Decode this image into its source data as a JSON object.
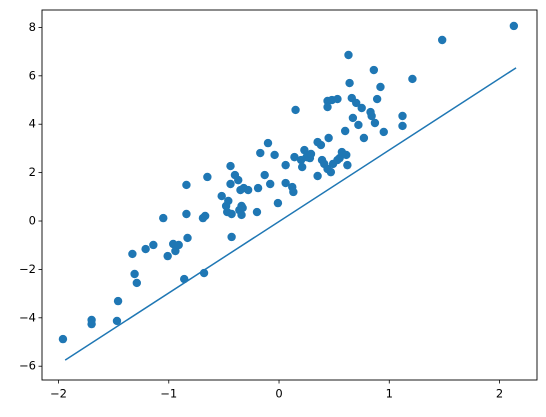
{
  "chart_data": {
    "type": "scatter",
    "color": "#1f77b4",
    "x": [
      -1.96,
      -1.7,
      -1.7,
      -1.47,
      -1.46,
      -1.33,
      -1.31,
      -1.29,
      -1.21,
      -1.14,
      -1.05,
      -1.01,
      -0.96,
      -0.94,
      -0.91,
      -0.86,
      -0.84,
      -0.84,
      -0.83,
      -0.69,
      -0.68,
      -0.67,
      -0.65,
      -0.52,
      -0.48,
      -0.47,
      -0.46,
      -0.44,
      -0.44,
      -0.43,
      -0.43,
      -0.4,
      -0.37,
      -0.36,
      -0.35,
      -0.34,
      -0.34,
      -0.33,
      -0.32,
      -0.28,
      -0.2,
      -0.19,
      -0.17,
      -0.13,
      -0.1,
      -0.08,
      -0.04,
      -0.01,
      0.06,
      0.06,
      0.12,
      0.13,
      0.14,
      0.15,
      0.2,
      0.21,
      0.23,
      0.25,
      0.28,
      0.29,
      0.35,
      0.35,
      0.38,
      0.39,
      0.41,
      0.44,
      0.44,
      0.44,
      0.45,
      0.47,
      0.48,
      0.49,
      0.53,
      0.53,
      0.55,
      0.57,
      0.6,
      0.61,
      0.62,
      0.63,
      0.64,
      0.66,
      0.67,
      0.7,
      0.72,
      0.75,
      0.77,
      0.83,
      0.84,
      0.86,
      0.87,
      0.89,
      0.92,
      0.95,
      1.12,
      1.12,
      1.21,
      1.48,
      2.13
    ],
    "y": [
      -4.88,
      -4.09,
      -4.26,
      -4.13,
      -3.31,
      -1.36,
      -2.19,
      -2.56,
      -1.16,
      -0.99,
      0.12,
      -1.45,
      -0.95,
      -1.24,
      -0.99,
      -2.4,
      0.29,
      1.49,
      -0.7,
      0.12,
      -2.15,
      0.21,
      1.82,
      1.03,
      0.62,
      0.37,
      0.83,
      2.27,
      1.53,
      -0.66,
      0.29,
      1.9,
      1.69,
      0.45,
      1.28,
      0.25,
      0.62,
      0.54,
      1.36,
      1.28,
      0.37,
      1.36,
      2.81,
      1.9,
      3.22,
      1.53,
      2.73,
      0.74,
      1.57,
      2.31,
      1.4,
      1.2,
      2.64,
      4.59,
      2.52,
      2.23,
      2.93,
      2.64,
      2.6,
      2.77,
      3.26,
      1.86,
      3.14,
      2.52,
      2.36,
      4.96,
      4.71,
      2.15,
      3.43,
      2.02,
      5.0,
      2.36,
      5.04,
      2.52,
      2.6,
      2.85,
      3.72,
      2.73,
      2.31,
      6.86,
      5.7,
      5.08,
      4.26,
      4.88,
      3.97,
      4.67,
      3.43,
      4.5,
      4.34,
      6.24,
      4.05,
      5.04,
      5.54,
      3.68,
      4.34,
      3.93,
      5.87,
      7.48,
      8.06
    ],
    "line": {
      "x": [
        -1.94,
        2.15
      ],
      "y": [
        -5.75,
        6.33
      ]
    },
    "xlim": [
      -2.15,
      2.34
    ],
    "ylim": [
      -6.57,
      8.72
    ],
    "xticks": [
      {
        "value": -2,
        "label": "−2"
      },
      {
        "value": -1,
        "label": "−1"
      },
      0,
      1,
      2
    ],
    "yticks": [
      {
        "value": -6,
        "label": "−6"
      },
      {
        "value": -4,
        "label": "−4"
      },
      {
        "value": -2,
        "label": "−2"
      },
      0,
      2,
      4,
      6,
      8
    ]
  }
}
